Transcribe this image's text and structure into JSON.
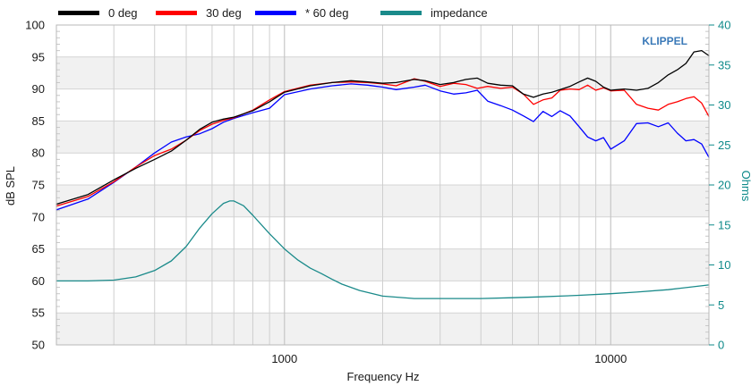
{
  "chart_data": {
    "type": "line",
    "xlabel": "Frequency Hz",
    "ylabel": "dB SPL",
    "y2label": "Ohms",
    "watermark": "KLIPPEL",
    "x_scale": "log",
    "xlim": [
      200,
      20000
    ],
    "ylim": [
      50,
      100
    ],
    "y2lim": [
      0,
      40
    ],
    "x_tick_labels": [
      {
        "value": 1000,
        "label": "1000"
      },
      {
        "value": 10000,
        "label": "10000"
      }
    ],
    "y_ticks": [
      100,
      95,
      90,
      85,
      80,
      75,
      70,
      65,
      60,
      55,
      50
    ],
    "y2_ticks": [
      40,
      35,
      30,
      25,
      20,
      15,
      10,
      5,
      0
    ],
    "grid": true,
    "legend_position": "top",
    "series": [
      {
        "name": "0 deg",
        "axis": "left",
        "color": "#000000",
        "x": [
          200,
          250,
          300,
          350,
          400,
          450,
          500,
          550,
          600,
          650,
          700,
          800,
          900,
          1000,
          1200,
          1400,
          1600,
          1800,
          2000,
          2200,
          2500,
          2700,
          3000,
          3300,
          3600,
          3900,
          4200,
          4600,
          5000,
          5400,
          5800,
          6200,
          6600,
          7000,
          7500,
          8000,
          8500,
          9000,
          9500,
          10000,
          11000,
          12000,
          13000,
          14000,
          15000,
          16000,
          17000,
          18000,
          19000,
          20000
        ],
        "values": [
          72,
          73.5,
          75.8,
          77.6,
          79,
          80.3,
          82,
          83.7,
          84.8,
          85.3,
          85.6,
          86.6,
          88,
          89.5,
          90.5,
          91,
          91.3,
          91.1,
          90.9,
          91,
          91.5,
          91.3,
          90.7,
          91,
          91.5,
          91.7,
          90.9,
          90.6,
          90.5,
          89.2,
          88.7,
          89.2,
          89.5,
          89.9,
          90.4,
          91.1,
          91.7,
          91.2,
          90.3,
          89.8,
          90,
          89.8,
          90.1,
          91,
          92.2,
          93,
          94,
          95.8,
          96,
          95.2
        ]
      },
      {
        "name": "30 deg",
        "axis": "left",
        "color": "#ff0000",
        "x": [
          200,
          250,
          300,
          350,
          400,
          450,
          500,
          550,
          600,
          650,
          700,
          800,
          900,
          1000,
          1200,
          1400,
          1600,
          1800,
          2000,
          2200,
          2500,
          2700,
          3000,
          3300,
          3600,
          3900,
          4200,
          4600,
          5000,
          5400,
          5800,
          6200,
          6600,
          7000,
          7500,
          8000,
          8500,
          9000,
          9500,
          10000,
          11000,
          12000,
          13000,
          14000,
          15000,
          16000,
          17000,
          18000,
          19000,
          20000
        ],
        "values": [
          71.7,
          73.2,
          75.5,
          77.8,
          79.6,
          80.6,
          82,
          83.5,
          84.5,
          85.1,
          85.5,
          86.7,
          88.3,
          89.6,
          90.6,
          91,
          91.1,
          91,
          90.8,
          90.5,
          91.6,
          91.2,
          90.4,
          90.9,
          90.7,
          90.1,
          90.4,
          90.1,
          90.3,
          89.2,
          87.6,
          88.3,
          88.6,
          89.8,
          90,
          89.9,
          90.6,
          89.8,
          90.2,
          89.7,
          89.8,
          87.6,
          87,
          86.7,
          87.6,
          88,
          88.5,
          88.8,
          87.8,
          85.7
        ]
      },
      {
        "name": "* 60 deg",
        "axis": "left",
        "color": "#0000ff",
        "x": [
          200,
          250,
          300,
          350,
          400,
          450,
          500,
          550,
          600,
          650,
          700,
          800,
          900,
          1000,
          1200,
          1400,
          1600,
          1800,
          2000,
          2200,
          2500,
          2700,
          3000,
          3300,
          3600,
          3900,
          4200,
          4600,
          5000,
          5400,
          5800,
          6200,
          6600,
          7000,
          7500,
          8000,
          8500,
          9000,
          9500,
          10000,
          11000,
          12000,
          13000,
          14000,
          15000,
          16000,
          17000,
          18000,
          19000,
          20000
        ],
        "values": [
          71.1,
          72.8,
          75.4,
          77.8,
          80,
          81.7,
          82.5,
          83,
          83.8,
          84.8,
          85.4,
          86.3,
          87,
          89.1,
          90,
          90.5,
          90.8,
          90.6,
          90.3,
          89.9,
          90.3,
          90.6,
          89.7,
          89.2,
          89.4,
          89.8,
          88.1,
          87.4,
          86.7,
          85.8,
          84.9,
          86.5,
          85.7,
          86.6,
          85.8,
          84.1,
          82.5,
          81.9,
          82.4,
          80.6,
          81.9,
          84.6,
          84.7,
          84.1,
          84.7,
          83.1,
          81.9,
          82.1,
          81.4,
          79.3
        ]
      },
      {
        "name": "impedance",
        "axis": "right",
        "color": "#1a8a8a",
        "x": [
          200,
          250,
          300,
          350,
          400,
          450,
          500,
          550,
          600,
          650,
          680,
          700,
          750,
          800,
          900,
          1000,
          1100,
          1200,
          1300,
          1400,
          1500,
          1700,
          2000,
          2500,
          3000,
          4000,
          5000,
          6000,
          7000,
          8000,
          10000,
          12000,
          15000,
          20000
        ],
        "values": [
          8,
          8,
          8.1,
          8.5,
          9.3,
          10.5,
          12.3,
          14.6,
          16.4,
          17.7,
          18,
          18,
          17.4,
          16.2,
          13.9,
          12,
          10.6,
          9.6,
          8.9,
          8.2,
          7.6,
          6.8,
          6.1,
          5.8,
          5.8,
          5.8,
          5.9,
          6,
          6.1,
          6.2,
          6.4,
          6.6,
          6.9,
          7.5
        ]
      }
    ]
  }
}
